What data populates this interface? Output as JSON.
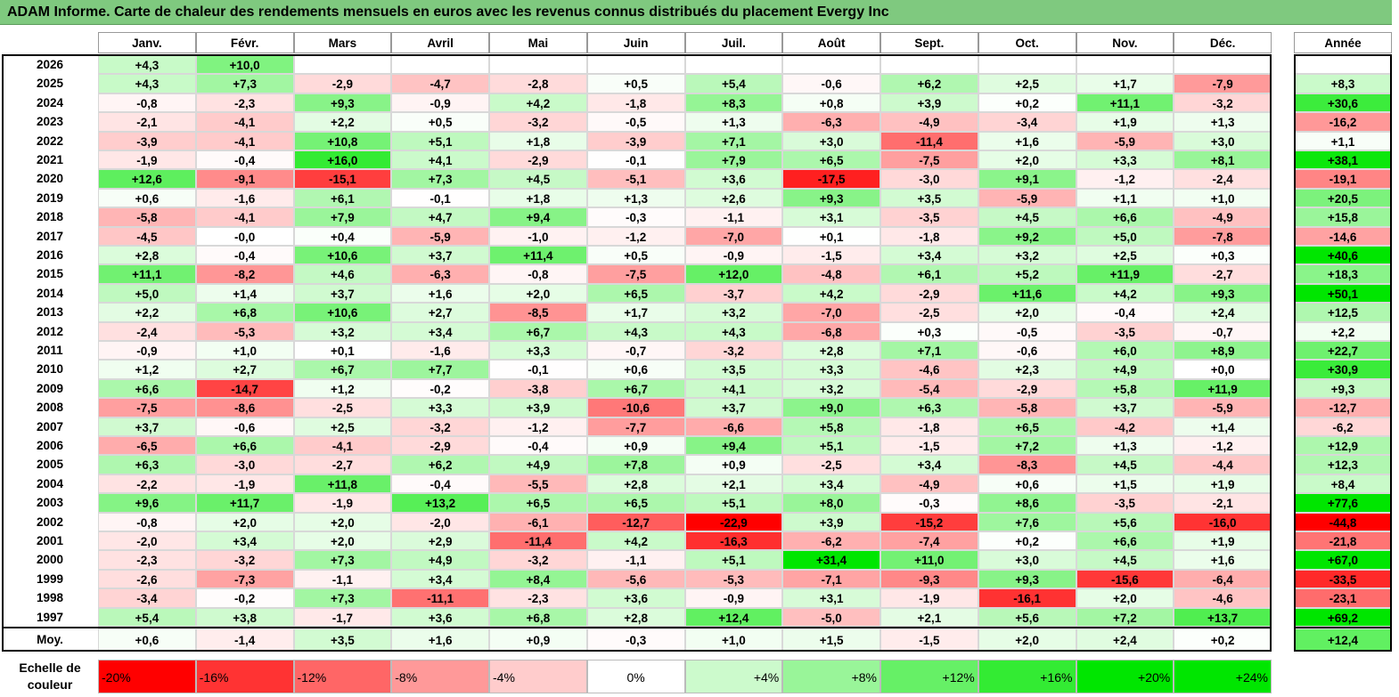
{
  "title": "ADAM Informe. Carte de chaleur des rendements mensuels en euros avec les revenus connus distribués du placement Evergy Inc",
  "chart_data": {
    "type": "heatmap",
    "columns": [
      "Janv.",
      "Févr.",
      "Mars",
      "Avril",
      "Mai",
      "Juin",
      "Juil.",
      "Août",
      "Sept.",
      "Oct.",
      "Nov.",
      "Déc."
    ],
    "year_header": "Année",
    "rows": [
      {
        "label": "2026",
        "values": [
          "+4,3",
          "+10,0",
          "",
          "",
          "",
          "",
          "",
          "",
          "",
          "",
          "",
          ""
        ],
        "year": ""
      },
      {
        "label": "2025",
        "values": [
          "+4,3",
          "+7,3",
          "-2,9",
          "-4,7",
          "-2,8",
          "+0,5",
          "+5,4",
          "-0,6",
          "+6,2",
          "+2,5",
          "+1,7",
          "-7,9"
        ],
        "year": "+8,3"
      },
      {
        "label": "2024",
        "values": [
          "-0,8",
          "-2,3",
          "+9,3",
          "-0,9",
          "+4,2",
          "-1,8",
          "+8,3",
          "+0,8",
          "+3,9",
          "+0,2",
          "+11,1",
          "-3,2"
        ],
        "year": "+30,6"
      },
      {
        "label": "2023",
        "values": [
          "-2,1",
          "-4,1",
          "+2,2",
          "+0,5",
          "-3,2",
          "-0,5",
          "+1,3",
          "-6,3",
          "-4,9",
          "-3,4",
          "+1,9",
          "+1,3"
        ],
        "year": "-16,2"
      },
      {
        "label": "2022",
        "values": [
          "-3,9",
          "-4,1",
          "+10,8",
          "+5,1",
          "+1,8",
          "-3,9",
          "+7,1",
          "+3,0",
          "-11,4",
          "+1,6",
          "-5,9",
          "+3,0"
        ],
        "year": "+1,1"
      },
      {
        "label": "2021",
        "values": [
          "-1,9",
          "-0,4",
          "+16,0",
          "+4,1",
          "-2,9",
          "-0,1",
          "+7,9",
          "+6,5",
          "-7,5",
          "+2,0",
          "+3,3",
          "+8,1"
        ],
        "year": "+38,1"
      },
      {
        "label": "2020",
        "values": [
          "+12,6",
          "-9,1",
          "-15,1",
          "+7,3",
          "+4,5",
          "-5,1",
          "+3,6",
          "-17,5",
          "-3,0",
          "+9,1",
          "-1,2",
          "-2,4"
        ],
        "year": "-19,1"
      },
      {
        "label": "2019",
        "values": [
          "+0,6",
          "-1,6",
          "+6,1",
          "-0,1",
          "+1,8",
          "+1,3",
          "+2,6",
          "+9,3",
          "+3,5",
          "-5,9",
          "+1,1",
          "+1,0"
        ],
        "year": "+20,5"
      },
      {
        "label": "2018",
        "values": [
          "-5,8",
          "-4,1",
          "+7,9",
          "+4,7",
          "+9,4",
          "-0,3",
          "-1,1",
          "+3,1",
          "-3,5",
          "+4,5",
          "+6,6",
          "-4,9"
        ],
        "year": "+15,8"
      },
      {
        "label": "2017",
        "values": [
          "-4,5",
          "-0,0",
          "+0,4",
          "-5,9",
          "-1,0",
          "-1,2",
          "-7,0",
          "+0,1",
          "-1,8",
          "+9,2",
          "+5,0",
          "-7,8"
        ],
        "year": "-14,6"
      },
      {
        "label": "2016",
        "values": [
          "+2,8",
          "-0,4",
          "+10,6",
          "+3,7",
          "+11,4",
          "+0,5",
          "-0,9",
          "-1,5",
          "+3,4",
          "+3,2",
          "+2,5",
          "+0,3"
        ],
        "year": "+40,6"
      },
      {
        "label": "2015",
        "values": [
          "+11,1",
          "-8,2",
          "+4,6",
          "-6,3",
          "-0,8",
          "-7,5",
          "+12,0",
          "-4,8",
          "+6,1",
          "+5,2",
          "+11,9",
          "-2,7"
        ],
        "year": "+18,3"
      },
      {
        "label": "2014",
        "values": [
          "+5,0",
          "+1,4",
          "+3,7",
          "+1,6",
          "+2,0",
          "+6,5",
          "-3,7",
          "+4,2",
          "-2,9",
          "+11,6",
          "+4,2",
          "+9,3"
        ],
        "year": "+50,1"
      },
      {
        "label": "2013",
        "values": [
          "+2,2",
          "+6,8",
          "+10,6",
          "+2,7",
          "-8,5",
          "+1,7",
          "+3,2",
          "-7,0",
          "-2,5",
          "+2,0",
          "-0,4",
          "+2,4"
        ],
        "year": "+12,5"
      },
      {
        "label": "2012",
        "values": [
          "-2,4",
          "-5,3",
          "+3,2",
          "+3,4",
          "+6,7",
          "+4,3",
          "+4,3",
          "-6,8",
          "+0,3",
          "-0,5",
          "-3,5",
          "-0,7"
        ],
        "year": "+2,2"
      },
      {
        "label": "2011",
        "values": [
          "-0,9",
          "+1,0",
          "+0,1",
          "-1,6",
          "+3,3",
          "-0,7",
          "-3,2",
          "+2,8",
          "+7,1",
          "-0,6",
          "+6,0",
          "+8,9"
        ],
        "year": "+22,7"
      },
      {
        "label": "2010",
        "values": [
          "+1,2",
          "+2,7",
          "+6,7",
          "+7,7",
          "-0,1",
          "+0,6",
          "+3,5",
          "+3,3",
          "-4,6",
          "+2,3",
          "+4,9",
          "+0,0"
        ],
        "year": "+30,9"
      },
      {
        "label": "2009",
        "values": [
          "+6,6",
          "-14,7",
          "+1,2",
          "-0,2",
          "-3,8",
          "+6,7",
          "+4,1",
          "+3,2",
          "-5,4",
          "-2,9",
          "+5,8",
          "+11,9"
        ],
        "year": "+9,3"
      },
      {
        "label": "2008",
        "values": [
          "-7,5",
          "-8,6",
          "-2,5",
          "+3,3",
          "+3,9",
          "-10,6",
          "+3,7",
          "+9,0",
          "+6,3",
          "-5,8",
          "+3,7",
          "-5,9"
        ],
        "year": "-12,7"
      },
      {
        "label": "2007",
        "values": [
          "+3,7",
          "-0,6",
          "+2,5",
          "-3,2",
          "-1,2",
          "-7,7",
          "-6,6",
          "+5,8",
          "-1,8",
          "+6,5",
          "-4,2",
          "+1,4"
        ],
        "year": "-6,2"
      },
      {
        "label": "2006",
        "values": [
          "-6,5",
          "+6,6",
          "-4,1",
          "-2,9",
          "-0,4",
          "+0,9",
          "+9,4",
          "+5,1",
          "-1,5",
          "+7,2",
          "+1,3",
          "-1,2"
        ],
        "year": "+12,9"
      },
      {
        "label": "2005",
        "values": [
          "+6,3",
          "-3,0",
          "-2,7",
          "+6,2",
          "+4,9",
          "+7,8",
          "+0,9",
          "-2,5",
          "+3,4",
          "-8,3",
          "+4,5",
          "-4,4"
        ],
        "year": "+12,3"
      },
      {
        "label": "2004",
        "values": [
          "-2,2",
          "-1,9",
          "+11,8",
          "-0,4",
          "-5,5",
          "+2,8",
          "+2,1",
          "+3,4",
          "-4,9",
          "+0,6",
          "+1,5",
          "+1,9"
        ],
        "year": "+8,4"
      },
      {
        "label": "2003",
        "values": [
          "+9,6",
          "+11,7",
          "-1,9",
          "+13,2",
          "+6,5",
          "+6,5",
          "+5,1",
          "+8,0",
          "-0,3",
          "+8,6",
          "-3,5",
          "-2,1"
        ],
        "year": "+77,6"
      },
      {
        "label": "2002",
        "values": [
          "-0,8",
          "+2,0",
          "+2,0",
          "-2,0",
          "-6,1",
          "-12,7",
          "-22,9",
          "+3,9",
          "-15,2",
          "+7,6",
          "+5,6",
          "-16,0"
        ],
        "year": "-44,8"
      },
      {
        "label": "2001",
        "values": [
          "-2,0",
          "+3,4",
          "+2,0",
          "+2,9",
          "-11,4",
          "+4,2",
          "-16,3",
          "-6,2",
          "-7,4",
          "+0,2",
          "+6,6",
          "+1,9"
        ],
        "year": "-21,8"
      },
      {
        "label": "2000",
        "values": [
          "-2,3",
          "-3,2",
          "+7,3",
          "+4,9",
          "-3,2",
          "-1,1",
          "+5,1",
          "+31,4",
          "+11,0",
          "+3,0",
          "+4,5",
          "+1,6"
        ],
        "year": "+67,0"
      },
      {
        "label": "1999",
        "values": [
          "-2,6",
          "-7,3",
          "-1,1",
          "+3,4",
          "+8,4",
          "-5,6",
          "-5,3",
          "-7,1",
          "-9,3",
          "+9,3",
          "-15,6",
          "-6,4"
        ],
        "year": "-33,5"
      },
      {
        "label": "1998",
        "values": [
          "-3,4",
          "-0,2",
          "+7,3",
          "-11,1",
          "-2,3",
          "+3,6",
          "-0,9",
          "+3,1",
          "-1,9",
          "-16,1",
          "+2,0",
          "-4,6"
        ],
        "year": "-23,1"
      },
      {
        "label": "1997",
        "values": [
          "+5,4",
          "+3,8",
          "-1,7",
          "+3,6",
          "+6,8",
          "+2,8",
          "+12,4",
          "-5,0",
          "+2,1",
          "+5,6",
          "+7,2",
          "+13,7"
        ],
        "year": "+69,2"
      }
    ],
    "average": {
      "label": "Moy.",
      "values": [
        "+0,6",
        "-1,4",
        "+3,5",
        "+1,6",
        "+0,9",
        "-0,3",
        "+1,0",
        "+1,5",
        "-1,5",
        "+2,0",
        "+2,4",
        "+0,2"
      ],
      "year": "+12,4"
    },
    "scale": {
      "label": "Echelle de couleur",
      "stops": [
        {
          "label": "-20%",
          "value": -20
        },
        {
          "label": "-16%",
          "value": -16
        },
        {
          "label": "-12%",
          "value": -12
        },
        {
          "label": "-8%",
          "value": -8
        },
        {
          "label": "-4%",
          "value": -4
        },
        {
          "label": "0%",
          "value": 0
        },
        {
          "label": "+4%",
          "value": 4
        },
        {
          "label": "+8%",
          "value": 8
        },
        {
          "label": "+12%",
          "value": 12
        },
        {
          "label": "+16%",
          "value": 16
        },
        {
          "label": "+20%",
          "value": 20
        },
        {
          "label": "+24%",
          "value": 24
        }
      ]
    },
    "colors": {
      "negative": "#ff0000",
      "neutral": "#ffffff",
      "positive": "#00e600"
    }
  }
}
